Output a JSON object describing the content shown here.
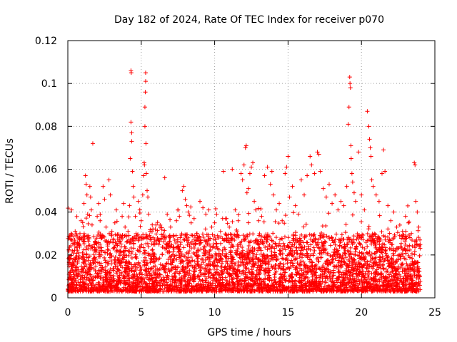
{
  "chart_data": {
    "type": "scatter",
    "title": "Day 182 of 2024, Rate Of TEC Index for receiver p070",
    "xlabel": "GPS time / hours",
    "ylabel": "ROTI / TECUs",
    "xlim": [
      0,
      25
    ],
    "ylim": [
      0,
      0.12
    ],
    "xticks": [
      0,
      5,
      10,
      15,
      20,
      25
    ],
    "xtick_labels": [
      "0",
      "5",
      "10",
      "15",
      "20",
      "25"
    ],
    "yticks": [
      0,
      0.02,
      0.04,
      0.06,
      0.08,
      0.1,
      0.12
    ],
    "ytick_labels": [
      "0",
      "0.02",
      "0.04",
      "0.06",
      "0.08",
      "0.1",
      "0.12"
    ],
    "grid": true,
    "marker": "+",
    "series": [
      {
        "name": "ROTI",
        "color": "#ff0000",
        "points": [
          [
            0.1,
            0.018
          ],
          [
            0.15,
            0.012
          ],
          [
            0.2,
            0.029
          ],
          [
            0.25,
            0.041
          ],
          [
            0.3,
            0.022
          ],
          [
            0.35,
            0.015
          ],
          [
            0.4,
            0.009
          ],
          [
            0.45,
            0.025
          ],
          [
            0.5,
            0.031
          ],
          [
            0.6,
            0.019
          ],
          [
            0.7,
            0.013
          ],
          [
            0.8,
            0.027
          ],
          [
            0.9,
            0.036
          ],
          [
            1.0,
            0.021
          ],
          [
            1.1,
            0.044
          ],
          [
            1.2,
            0.057
          ],
          [
            1.25,
            0.053
          ],
          [
            1.3,
            0.048
          ],
          [
            1.35,
            0.039
          ],
          [
            1.4,
            0.029
          ],
          [
            1.5,
            0.052
          ],
          [
            1.55,
            0.047
          ],
          [
            1.6,
            0.041
          ],
          [
            1.65,
            0.034
          ],
          [
            1.7,
            0.072
          ],
          [
            1.8,
            0.022
          ],
          [
            1.9,
            0.018
          ],
          [
            2.0,
            0.038
          ],
          [
            2.1,
            0.044
          ],
          [
            2.2,
            0.036
          ],
          [
            2.3,
            0.029
          ],
          [
            2.4,
            0.052
          ],
          [
            2.5,
            0.046
          ],
          [
            2.6,
            0.033
          ],
          [
            2.7,
            0.025
          ],
          [
            2.8,
            0.055
          ],
          [
            2.9,
            0.048
          ],
          [
            3.0,
            0.031
          ],
          [
            3.1,
            0.027
          ],
          [
            3.2,
            0.035
          ],
          [
            3.3,
            0.041
          ],
          [
            3.4,
            0.022
          ],
          [
            3.5,
            0.018
          ],
          [
            3.6,
            0.029
          ],
          [
            3.7,
            0.038
          ],
          [
            3.8,
            0.044
          ],
          [
            3.9,
            0.033
          ],
          [
            4.0,
            0.026
          ],
          [
            4.1,
            0.031
          ],
          [
            4.2,
            0.043
          ],
          [
            4.25,
            0.065
          ],
          [
            4.3,
            0.082
          ],
          [
            4.3,
            0.106
          ],
          [
            4.32,
            0.105
          ],
          [
            4.35,
            0.077
          ],
          [
            4.35,
            0.073
          ],
          [
            4.4,
            0.059
          ],
          [
            4.45,
            0.052
          ],
          [
            4.5,
            0.047
          ],
          [
            4.6,
            0.038
          ],
          [
            4.7,
            0.029
          ],
          [
            4.8,
            0.045
          ],
          [
            4.9,
            0.041
          ],
          [
            5.0,
            0.036
          ],
          [
            5.1,
            0.048
          ],
          [
            5.15,
            0.057
          ],
          [
            5.2,
            0.063
          ],
          [
            5.22,
            0.062
          ],
          [
            5.25,
            0.08
          ],
          [
            5.25,
            0.089
          ],
          [
            5.28,
            0.096
          ],
          [
            5.3,
            0.101
          ],
          [
            5.3,
            0.105
          ],
          [
            5.32,
            0.072
          ],
          [
            5.35,
            0.058
          ],
          [
            5.4,
            0.05
          ],
          [
            5.45,
            0.047
          ],
          [
            5.5,
            0.039
          ],
          [
            5.6,
            0.031
          ],
          [
            5.8,
            0.028
          ],
          [
            6.0,
            0.034
          ],
          [
            6.2,
            0.027
          ],
          [
            6.4,
            0.032
          ],
          [
            6.6,
            0.056
          ],
          [
            6.8,
            0.025
          ],
          [
            7.0,
            0.033
          ],
          [
            7.2,
            0.029
          ],
          [
            7.4,
            0.036
          ],
          [
            7.5,
            0.041
          ],
          [
            7.6,
            0.038
          ],
          [
            7.8,
            0.05
          ],
          [
            7.9,
            0.052
          ],
          [
            8.0,
            0.046
          ],
          [
            8.1,
            0.043
          ],
          [
            8.2,
            0.04
          ],
          [
            8.4,
            0.035
          ],
          [
            8.6,
            0.037
          ],
          [
            8.8,
            0.03
          ],
          [
            9.0,
            0.045
          ],
          [
            9.2,
            0.042
          ],
          [
            9.4,
            0.039
          ],
          [
            9.6,
            0.041
          ],
          [
            9.8,
            0.033
          ],
          [
            10.0,
            0.035
          ],
          [
            10.2,
            0.029
          ],
          [
            10.4,
            0.031
          ],
          [
            10.6,
            0.059
          ],
          [
            10.8,
            0.037
          ],
          [
            11.0,
            0.033
          ],
          [
            11.2,
            0.06
          ],
          [
            11.4,
            0.041
          ],
          [
            11.6,
            0.036
          ],
          [
            11.8,
            0.058
          ],
          [
            11.9,
            0.055
          ],
          [
            12.0,
            0.062
          ],
          [
            12.1,
            0.07
          ],
          [
            12.15,
            0.071
          ],
          [
            12.2,
            0.049
          ],
          [
            12.3,
            0.051
          ],
          [
            12.4,
            0.058
          ],
          [
            12.5,
            0.061
          ],
          [
            12.6,
            0.063
          ],
          [
            12.7,
            0.045
          ],
          [
            12.8,
            0.041
          ],
          [
            13.0,
            0.036
          ],
          [
            13.2,
            0.038
          ],
          [
            13.4,
            0.057
          ],
          [
            13.6,
            0.061
          ],
          [
            13.8,
            0.053
          ],
          [
            13.9,
            0.059
          ],
          [
            14.0,
            0.048
          ],
          [
            14.2,
            0.041
          ],
          [
            14.4,
            0.044
          ],
          [
            14.6,
            0.036
          ],
          [
            14.8,
            0.058
          ],
          [
            14.9,
            0.061
          ],
          [
            15.0,
            0.066
          ],
          [
            15.1,
            0.047
          ],
          [
            15.3,
            0.052
          ],
          [
            15.5,
            0.043
          ],
          [
            15.7,
            0.039
          ],
          [
            15.9,
            0.055
          ],
          [
            16.1,
            0.048
          ],
          [
            16.3,
            0.057
          ],
          [
            16.5,
            0.066
          ],
          [
            16.6,
            0.062
          ],
          [
            16.8,
            0.058
          ],
          [
            17.0,
            0.068
          ],
          [
            17.1,
            0.067
          ],
          [
            17.2,
            0.059
          ],
          [
            17.4,
            0.051
          ],
          [
            17.6,
            0.047
          ],
          [
            17.8,
            0.053
          ],
          [
            18.0,
            0.044
          ],
          [
            18.2,
            0.048
          ],
          [
            18.4,
            0.041
          ],
          [
            18.6,
            0.045
          ],
          [
            18.8,
            0.043
          ],
          [
            19.0,
            0.052
          ],
          [
            19.1,
            0.081
          ],
          [
            19.15,
            0.089
          ],
          [
            19.2,
            0.103
          ],
          [
            19.22,
            0.1
          ],
          [
            19.25,
            0.098
          ],
          [
            19.28,
            0.071
          ],
          [
            19.3,
            0.065
          ],
          [
            19.35,
            0.058
          ],
          [
            19.4,
            0.054
          ],
          [
            19.5,
            0.049
          ],
          [
            19.6,
            0.045
          ],
          [
            19.8,
            0.068
          ],
          [
            20.0,
            0.048
          ],
          [
            20.2,
            0.041
          ],
          [
            20.4,
            0.087
          ],
          [
            20.5,
            0.08
          ],
          [
            20.55,
            0.074
          ],
          [
            20.6,
            0.07
          ],
          [
            20.65,
            0.066
          ],
          [
            20.7,
            0.055
          ],
          [
            20.8,
            0.052
          ],
          [
            21.0,
            0.048
          ],
          [
            21.2,
            0.045
          ],
          [
            21.4,
            0.058
          ],
          [
            21.5,
            0.069
          ],
          [
            21.6,
            0.059
          ],
          [
            21.8,
            0.043
          ],
          [
            22.0,
            0.036
          ],
          [
            22.2,
            0.04
          ],
          [
            22.4,
            0.033
          ],
          [
            22.6,
            0.029
          ],
          [
            22.8,
            0.031
          ],
          [
            23.0,
            0.038
          ],
          [
            23.2,
            0.035
          ],
          [
            23.4,
            0.03
          ],
          [
            23.6,
            0.063
          ],
          [
            23.65,
            0.062
          ],
          [
            23.7,
            0.045
          ],
          [
            23.8,
            0.04
          ],
          [
            23.9,
            0.033
          ]
        ],
        "dense_band": {
          "x_range": [
            0,
            24
          ],
          "typical_min": 0.003,
          "typical_max": 0.03,
          "point_count": 4200
        }
      }
    ]
  }
}
